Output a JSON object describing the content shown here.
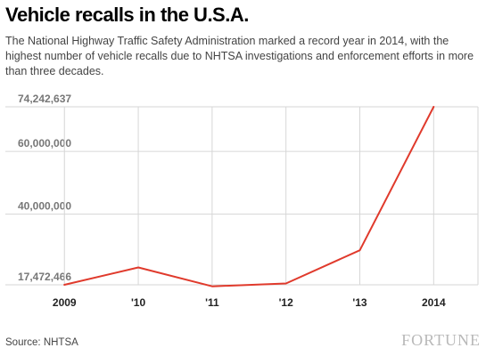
{
  "title": "Vehicle recalls in the U.S.A.",
  "subtitle": "The National Highway Traffic Safety Administration marked a record year in 2014, with the highest number of vehicle recalls due to NHTSA investigations and enforcement efforts in more than three decades.",
  "source": "Source: NHTSA",
  "brand": "FORTUNE",
  "colors": {
    "line": "#e03a2c",
    "grid": "#d6d6d6",
    "tick_text": "#777777"
  },
  "chart_data": {
    "type": "line",
    "title": "",
    "xlabel": "",
    "ylabel": "",
    "x": [
      2009,
      2010,
      2011,
      2012,
      2013,
      2014
    ],
    "x_tick_labels": [
      "2009",
      "'10",
      "'11",
      "'12",
      "'13",
      "2014"
    ],
    "series": [
      {
        "values": [
          17472466,
          23000000,
          17000000,
          17900000,
          28500000,
          74242637
        ]
      }
    ],
    "y_ticks": [
      17472466,
      40000000,
      60000000,
      74242637
    ],
    "y_tick_labels": [
      "17,472,466",
      "40,000,000",
      "60,000,000",
      "74,242,637"
    ],
    "ylim": [
      17472466,
      74242637
    ],
    "xlim": [
      2008.2,
      2014.6
    ],
    "grid": true,
    "legend": "none"
  }
}
